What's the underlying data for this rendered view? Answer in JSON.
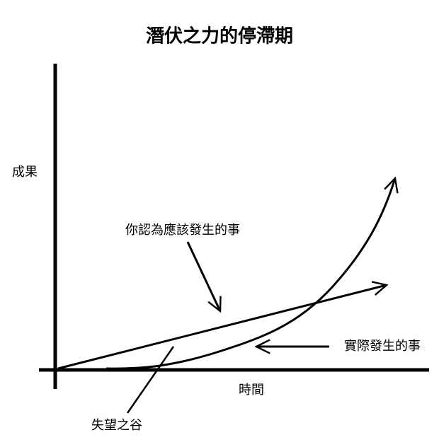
{
  "title": "潛伏之力的停滯期",
  "axes": {
    "y_label": "成果",
    "x_label": "時間"
  },
  "annotations": {
    "expected": "你認為應該發生的事",
    "actual": "實際發生的事",
    "valley": "失望之谷"
  }
}
